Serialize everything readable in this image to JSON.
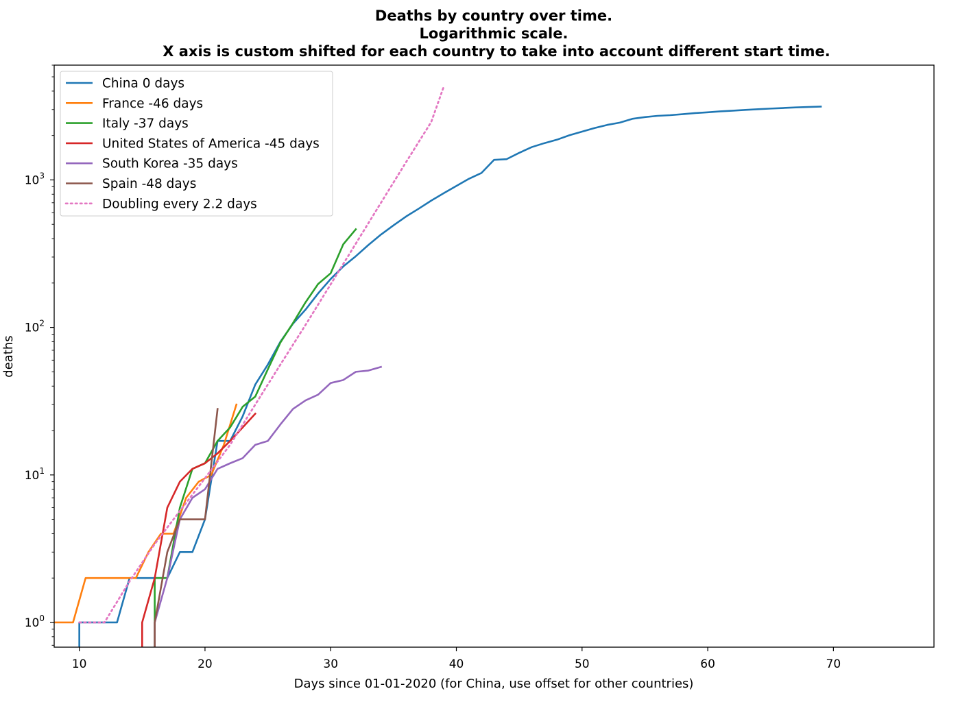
{
  "chart_data": {
    "type": "line",
    "title_lines": [
      "Deaths by country over time.",
      "Logarithmic scale.",
      "X axis is custom shifted for each country to take into account different start time."
    ],
    "xlabel": "Days since 01-01-2020 (for China, use offset for other countries)",
    "ylabel": "deaths",
    "xlim": [
      8,
      78
    ],
    "ylim": [
      0.68,
      6000
    ],
    "yscale": "log",
    "x_ticks": [
      10,
      20,
      30,
      40,
      50,
      60,
      70
    ],
    "y_ticks": [
      {
        "value": 1,
        "base": "10",
        "exp": "0"
      },
      {
        "value": 10,
        "base": "10",
        "exp": "1"
      },
      {
        "value": 100,
        "base": "10",
        "exp": "2"
      },
      {
        "value": 1000,
        "base": "10",
        "exp": "3"
      }
    ],
    "legend_position": "upper-left",
    "series": [
      {
        "name": "China 0 days",
        "color": "#1f77b4",
        "style": "solid",
        "x": [
          10,
          10,
          11,
          12,
          13,
          14,
          15,
          16,
          17,
          18,
          19,
          20,
          21,
          22,
          23,
          24,
          25,
          26,
          27,
          28,
          29,
          30,
          31,
          32,
          33,
          34,
          35,
          36,
          37,
          38,
          39,
          40,
          41,
          42,
          43,
          44,
          45,
          46,
          47,
          48,
          49,
          50,
          51,
          52,
          53,
          54,
          55,
          56,
          57,
          58,
          59,
          60,
          61,
          62,
          63,
          64,
          65,
          66,
          67,
          68,
          69
        ],
        "y": [
          0.6,
          1,
          1,
          1,
          1,
          2,
          2,
          2,
          2,
          3,
          3,
          5,
          17,
          17,
          25,
          41,
          56,
          80,
          106,
          132,
          170,
          213,
          259,
          304,
          362,
          426,
          492,
          565,
          638,
          724,
          813,
          910,
          1018,
          1115,
          1368,
          1383,
          1526,
          1669,
          1775,
          1873,
          2009,
          2126,
          2247,
          2360,
          2445,
          2595,
          2666,
          2718,
          2747,
          2791,
          2838,
          2873,
          2915,
          2946,
          2984,
          3015,
          3045,
          3073,
          3100,
          3123,
          3140
        ]
      },
      {
        "name": "France -46 days",
        "color": "#ff7f0e",
        "style": "solid",
        "x": [
          8,
          9.5,
          10.5,
          11.5,
          12.5,
          13.5,
          14.5,
          15.5,
          16.5,
          17.5,
          18.5,
          19.5,
          20.5,
          21.5,
          22.5
        ],
        "y": [
          1,
          1,
          2,
          2,
          2,
          2,
          2,
          3,
          4,
          4,
          7,
          9,
          10,
          16,
          30
        ]
      },
      {
        "name": "Italy -37 days",
        "color": "#2ca02c",
        "style": "solid",
        "x": [
          16,
          16,
          17,
          18,
          19,
          20,
          21,
          22,
          23,
          24,
          25,
          26,
          27,
          28,
          29,
          30,
          31,
          32
        ],
        "y": [
          0.6,
          2,
          2,
          6,
          11,
          12,
          17,
          21,
          29,
          34,
          52,
          79,
          107,
          148,
          197,
          233,
          366,
          463
        ]
      },
      {
        "name": "United States of America -45 days",
        "color": "#d62728",
        "style": "solid",
        "x": [
          15,
          15,
          16,
          17,
          18,
          19,
          20,
          21,
          22,
          23,
          24
        ],
        "y": [
          0.6,
          1,
          2,
          6,
          9,
          11,
          12,
          14,
          17,
          21,
          26
        ]
      },
      {
        "name": "South Korea -35 days",
        "color": "#9467bd",
        "style": "solid",
        "x": [
          16,
          16,
          17,
          18,
          19,
          20,
          21,
          22,
          23,
          24,
          25,
          26,
          27,
          28,
          29,
          30,
          31,
          32,
          33,
          34
        ],
        "y": [
          0.6,
          1,
          2,
          5,
          7,
          8,
          11,
          12,
          13,
          16,
          17,
          22,
          28,
          32,
          35,
          42,
          44,
          50,
          51,
          54
        ]
      },
      {
        "name": "Spain -48 days",
        "color": "#8c564b",
        "style": "solid",
        "x": [
          16,
          16,
          17,
          18,
          19,
          20,
          21
        ],
        "y": [
          0.6,
          1,
          3,
          5,
          5,
          5,
          28
        ]
      },
      {
        "name": "Doubling every 2.2 days",
        "color": "#e377c2",
        "style": "dotted",
        "x": [
          10,
          12,
          14,
          16,
          18,
          20,
          22,
          24,
          26,
          28,
          30,
          32,
          34,
          36,
          38,
          39
        ],
        "y": [
          1,
          1,
          1.9,
          3.4,
          5.7,
          9.5,
          16,
          30,
          56,
          104,
          196,
          370,
          700,
          1320,
          2470,
          4300
        ]
      }
    ]
  }
}
